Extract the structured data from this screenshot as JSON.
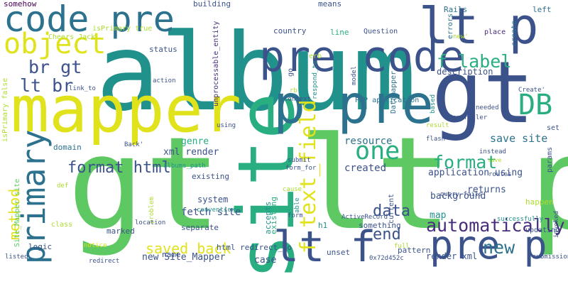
{
  "palette": {
    "navy": "#3b528b",
    "indigo": "#472d7b",
    "blue": "#2c728e",
    "teal": "#21918c",
    "green": "#28ae80",
    "light_green": "#5ec962",
    "lime": "#addc30",
    "yellow": "#e0e21b",
    "purple": "#440154"
  },
  "words": [
    {
      "text": "album"
    },
    {
      "text": "gt"
    },
    {
      "text": "lt p"
    },
    {
      "text": "mapper"
    },
    {
      "text": "gt lt p"
    },
    {
      "text": "site"
    },
    {
      "text": "p pre"
    },
    {
      "text": "pre code"
    },
    {
      "text": "code pre"
    },
    {
      "text": "object"
    },
    {
      "text": "DB"
    },
    {
      "text": "lt f"
    },
    {
      "text": "primary"
    },
    {
      "text": "pre p"
    },
    {
      "text": "one"
    },
    {
      "text": "f text_field"
    },
    {
      "text": "automatically"
    },
    {
      "text": "br gt"
    },
    {
      "text": "lt br"
    },
    {
      "text": "f label"
    },
    {
      "text": "format html"
    },
    {
      "text": "data"
    },
    {
      "text": "method"
    },
    {
      "text": "new"
    },
    {
      "text": "end"
    },
    {
      "text": "format"
    },
    {
      "text": "saved back"
    },
    {
      "text": "somehow"
    },
    {
      "text": "building"
    },
    {
      "text": "means"
    },
    {
      "text": "Rails"
    },
    {
      "text": "left"
    },
    {
      "text": "isPrimary true"
    },
    {
      "text": "unprocessable_entity"
    },
    {
      "text": "country"
    },
    {
      "text": "line"
    },
    {
      "text": "Question"
    },
    {
      "text": "create"
    },
    {
      "text": "Cheers Jack"
    },
    {
      "text": "status"
    },
    {
      "text": "erb"
    },
    {
      "text": "Datamapper"
    },
    {
      "text": "errors"
    },
    {
      "text": "new'"
    },
    {
      "text": "place"
    },
    {
      "text": "respond_to"
    },
    {
      "text": "isPrimary false"
    },
    {
      "text": "go"
    },
    {
      "text": "description"
    },
    {
      "text": "action"
    },
    {
      "text": "link_to"
    },
    {
      "text": "rb"
    },
    {
      "text": "model"
    },
    {
      "text": "PHP application"
    },
    {
      "text": "context"
    },
    {
      "text": "Create'"
    },
    {
      "text": "needed"
    },
    {
      "text": "Controller"
    },
    {
      "text": "set"
    },
    {
      "text": "using"
    },
    {
      "text": "result"
    },
    {
      "text": "Back'"
    },
    {
      "text": "flash"
    },
    {
      "text": "based"
    },
    {
      "text": "save site"
    },
    {
      "text": "domain"
    },
    {
      "text": "resource"
    },
    {
      "text": "genre"
    },
    {
      "text": "xml render"
    },
    {
      "text": "created"
    },
    {
      "text": "application using"
    },
    {
      "text": "instead"
    },
    {
      "text": "params"
    },
    {
      "text": "albums_path"
    },
    {
      "text": "existing"
    },
    {
      "text": "submit"
    },
    {
      "text": "form_for"
    },
    {
      "text": "save"
    },
    {
      "text": "routes"
    },
    {
      "text": "def"
    },
    {
      "text": "system"
    },
    {
      "text": "fetch site"
    },
    {
      "text": "returns"
    },
    {
      "text": "background"
    },
    {
      "text": "existing"
    },
    {
      "text": "accepts"
    },
    {
      "text": "current"
    },
    {
      "text": "able"
    },
    {
      "text": "cause"
    },
    {
      "text": "happen"
    },
    {
      "text": "query fails"
    },
    {
      "text": "map"
    },
    {
      "text": "convention"
    },
    {
      "text": "problem"
    },
    {
      "text": "form"
    },
    {
      "text": "Site_Mapper site"
    },
    {
      "text": "class"
    },
    {
      "text": "location"
    },
    {
      "text": "separate"
    },
    {
      "text": "ActiveRecord"
    },
    {
      "text": "something"
    },
    {
      "text": "successfully"
    },
    {
      "text": "marked"
    },
    {
      "text": "logic"
    },
    {
      "text": "h1"
    },
    {
      "text": "updating"
    },
    {
      "text": "invoked"
    },
    {
      "text": "name"
    },
    {
      "text": "html redirect_to"
    },
    {
      "text": "full"
    },
    {
      "text": "listed"
    },
    {
      "text": "redirect"
    },
    {
      "text": "notice"
    },
    {
      "text": "unset"
    },
    {
      "text": "pattern"
    },
    {
      "text": "new Site_Mapper"
    },
    {
      "text": "case"
    },
    {
      "text": "render xml"
    },
    {
      "text": "submission"
    },
    {
      "text": "0x72d452c"
    }
  ]
}
